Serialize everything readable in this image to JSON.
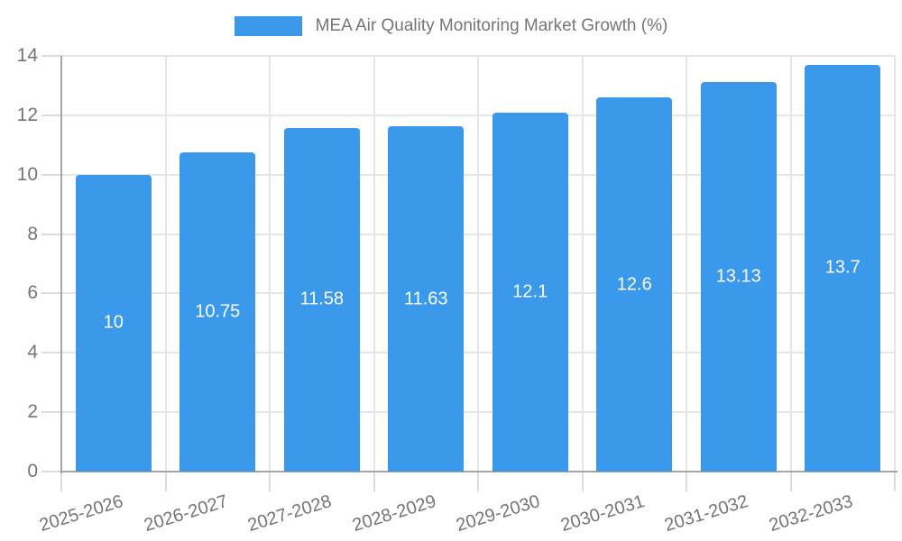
{
  "chart_data": {
    "type": "bar",
    "title": "MEA Air Quality Monitoring Market Growth (%)",
    "categories": [
      "2025-2026",
      "2026-2027",
      "2027-2028",
      "2028-2029",
      "2029-2030",
      "2030-2031",
      "2031-2032",
      "2032-2033"
    ],
    "values": [
      10,
      10.75,
      11.58,
      11.63,
      12.1,
      12.6,
      13.13,
      13.7
    ],
    "value_labels": [
      "10",
      "10.75",
      "11.58",
      "11.63",
      "12.1",
      "12.6",
      "13.13",
      "13.7"
    ],
    "xlabel": "",
    "ylabel": "",
    "ylim": [
      0,
      14
    ],
    "yticks": [
      0,
      2,
      4,
      6,
      8,
      10,
      12,
      14
    ],
    "grid": "on",
    "legend_position": "top-center",
    "colors": {
      "bar": "#3B99EC",
      "grid": "#E6E6E6",
      "tick": "#DCDCDC",
      "axis": "#A6A6A6",
      "text": "#757575",
      "value_text": "#FFFFFF",
      "background": "#FFFFFF"
    }
  }
}
